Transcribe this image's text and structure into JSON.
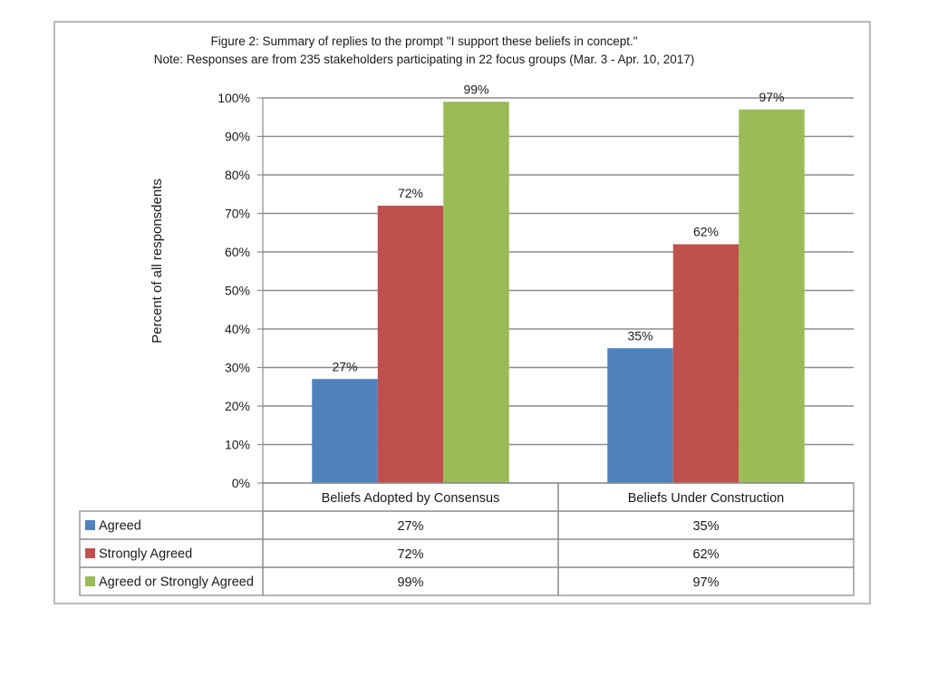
{
  "chart_data": {
    "type": "bar",
    "title": "Figure 2:  Summary of replies to the prompt \"I support these beliefs in concept.\"",
    "subtitle": "Note:  Responses are from 235 stakeholders participating  in 22 focus groups (Mar. 3 - Apr. 10, 2017)",
    "ylabel": "Percent of all responsdents",
    "xlabel": "",
    "ylim": [
      0,
      100
    ],
    "yticks": [
      "0%",
      "10%",
      "20%",
      "30%",
      "40%",
      "50%",
      "60%",
      "70%",
      "80%",
      "90%",
      "100%"
    ],
    "grid": true,
    "legend_position": "data-table",
    "categories": [
      "Beliefs Adopted by Consensus",
      "Beliefs Under Construction"
    ],
    "series": [
      {
        "name": "Agreed",
        "color": "#4f81bd",
        "values": [
          27,
          35
        ],
        "labels": [
          "27%",
          "35%"
        ]
      },
      {
        "name": "Strongly Agreed",
        "color": "#c0504d",
        "values": [
          72,
          62
        ],
        "labels": [
          "72%",
          "62%"
        ]
      },
      {
        "name": "Agreed or Strongly Agreed",
        "color": "#9bbb59",
        "values": [
          99,
          97
        ],
        "labels": [
          "99%",
          "97%"
        ]
      }
    ]
  }
}
